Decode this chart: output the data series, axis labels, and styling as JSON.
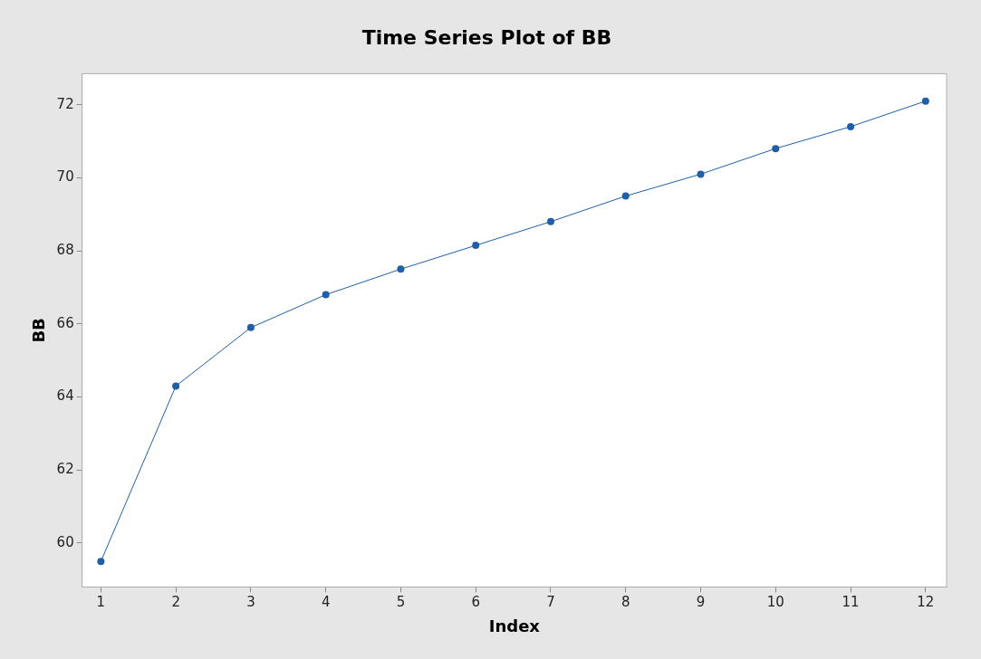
{
  "chart_data": {
    "type": "line",
    "title": "Time Series Plot of BB",
    "xlabel": "Index",
    "ylabel": "BB",
    "x": [
      1,
      2,
      3,
      4,
      5,
      6,
      7,
      8,
      9,
      10,
      11,
      12
    ],
    "series": [
      {
        "color": "#1f5fa8",
        "values": [
          59.5,
          64.3,
          65.9,
          66.8,
          67.5,
          68.15,
          68.8,
          69.5,
          70.1,
          70.8,
          71.4,
          72.1
        ]
      }
    ],
    "xlim": [
      0.75,
      12.28
    ],
    "xticks": [
      1,
      2,
      3,
      4,
      5,
      6,
      7,
      8,
      9,
      10,
      11,
      12
    ],
    "ylim": [
      58.8,
      72.85
    ],
    "yticks": [
      60,
      62,
      64,
      66,
      68,
      70,
      72
    ],
    "grid": false,
    "legend": false,
    "marker": "circle",
    "line_style": "solid"
  }
}
